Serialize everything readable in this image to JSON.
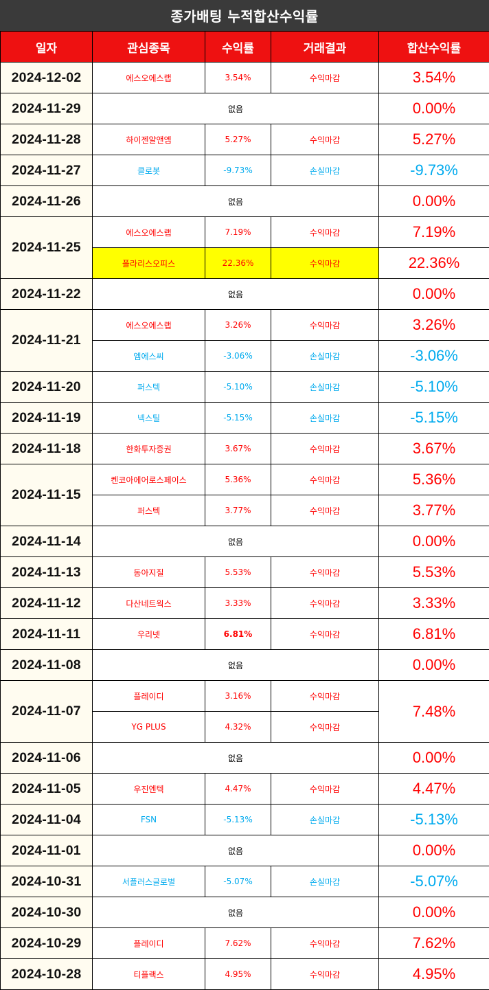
{
  "title": "종가배팅 누적합산수익률",
  "headers": [
    "일자",
    "관심종목",
    "수익률",
    "거래결과",
    "합산수익률"
  ],
  "colors": {
    "header_bg": "#ee1111",
    "title_bg": "#3a3a3a",
    "gain": "#ff0000",
    "loss": "#00aaee",
    "highlight": "#ffff00",
    "date_bg": "#fffcf0"
  },
  "days": [
    {
      "date": "2024-12-02",
      "sum": "3.54%",
      "sum_type": "gain",
      "trades": [
        {
          "name": "에스오에스랩",
          "rate": "3.54%",
          "result": "수익마감",
          "type": "gain"
        }
      ]
    },
    {
      "date": "2024-11-29",
      "sum": "0.00%",
      "sum_type": "zero",
      "none": "없음",
      "trades": []
    },
    {
      "date": "2024-11-28",
      "sum": "5.27%",
      "sum_type": "gain",
      "trades": [
        {
          "name": "하이젠알앤엠",
          "rate": "5.27%",
          "result": "수익마감",
          "type": "gain"
        }
      ]
    },
    {
      "date": "2024-11-27",
      "sum": "-9.73%",
      "sum_type": "loss",
      "trades": [
        {
          "name": "클로봇",
          "rate": "-9.73%",
          "result": "손실마감",
          "type": "loss"
        }
      ]
    },
    {
      "date": "2024-11-26",
      "sum": "0.00%",
      "sum_type": "zero",
      "none": "없음",
      "trades": []
    },
    {
      "date": "2024-11-25",
      "per_row_sum": true,
      "trades": [
        {
          "name": "에스오에스랩",
          "rate": "7.19%",
          "result": "수익마감",
          "type": "gain",
          "sum": "7.19%"
        },
        {
          "name": "폴라리스오피스",
          "rate": "22.36%",
          "result": "수익마감",
          "type": "gain",
          "sum": "22.36%",
          "highlight": true
        }
      ]
    },
    {
      "date": "2024-11-22",
      "sum": "0.00%",
      "sum_type": "zero",
      "none": "없음",
      "trades": []
    },
    {
      "date": "2024-11-21",
      "per_row_sum": true,
      "trades": [
        {
          "name": "에스오에스랩",
          "rate": "3.26%",
          "result": "수익마감",
          "type": "gain",
          "sum": "3.26%"
        },
        {
          "name": "엠에스씨",
          "rate": "-3.06%",
          "result": "손실마감",
          "type": "loss",
          "sum": "-3.06%"
        }
      ]
    },
    {
      "date": "2024-11-20",
      "sum": "-5.10%",
      "sum_type": "loss",
      "trades": [
        {
          "name": "퍼스텍",
          "rate": "-5.10%",
          "result": "손실마감",
          "type": "loss"
        }
      ]
    },
    {
      "date": "2024-11-19",
      "sum": "-5.15%",
      "sum_type": "loss",
      "trades": [
        {
          "name": "넥스틸",
          "rate": "-5.15%",
          "result": "손실마감",
          "type": "loss"
        }
      ]
    },
    {
      "date": "2024-11-18",
      "sum": "3.67%",
      "sum_type": "gain",
      "trades": [
        {
          "name": "한화투자증권",
          "rate": "3.67%",
          "result": "수익마감",
          "type": "gain"
        }
      ]
    },
    {
      "date": "2024-11-15",
      "per_row_sum": true,
      "trades": [
        {
          "name": "켄코아에어로스페이스",
          "rate": "5.36%",
          "result": "수익마감",
          "type": "gain",
          "sum": "5.36%"
        },
        {
          "name": "퍼스텍",
          "rate": "3.77%",
          "result": "수익마감",
          "type": "gain",
          "sum": "3.77%"
        }
      ]
    },
    {
      "date": "2024-11-14",
      "sum": "0.00%",
      "sum_type": "zero",
      "none": "없음",
      "trades": []
    },
    {
      "date": "2024-11-13",
      "sum": "5.53%",
      "sum_type": "gain",
      "trades": [
        {
          "name": "동아지질",
          "rate": "5.53%",
          "result": "수익마감",
          "type": "gain"
        }
      ]
    },
    {
      "date": "2024-11-12",
      "sum": "3.33%",
      "sum_type": "gain",
      "trades": [
        {
          "name": "다산네트웍스",
          "rate": "3.33%",
          "result": "수익마감",
          "type": "gain"
        }
      ]
    },
    {
      "date": "2024-11-11",
      "sum": "6.81%",
      "sum_type": "gain",
      "trades": [
        {
          "name": "우리넷",
          "rate": "6.81%",
          "result": "수익마감",
          "type": "gain",
          "bold_rate": true
        }
      ]
    },
    {
      "date": "2024-11-08",
      "sum": "0.00%",
      "sum_type": "zero",
      "none": "없음",
      "trades": []
    },
    {
      "date": "2024-11-07",
      "sum": "7.48%",
      "sum_type": "gain",
      "trades": [
        {
          "name": "플레이디",
          "rate": "3.16%",
          "result": "수익마감",
          "type": "gain"
        },
        {
          "name": "YG PLUS",
          "rate": "4.32%",
          "result": "수익마감",
          "type": "gain"
        }
      ]
    },
    {
      "date": "2024-11-06",
      "sum": "0.00%",
      "sum_type": "zero",
      "none": "없음",
      "trades": []
    },
    {
      "date": "2024-11-05",
      "sum": "4.47%",
      "sum_type": "gain",
      "trades": [
        {
          "name": "우진엔텍",
          "rate": "4.47%",
          "result": "수익마감",
          "type": "gain"
        }
      ]
    },
    {
      "date": "2024-11-04",
      "sum": "-5.13%",
      "sum_type": "loss",
      "trades": [
        {
          "name": "FSN",
          "rate": "-5.13%",
          "result": "손실마감",
          "type": "loss"
        }
      ]
    },
    {
      "date": "2024-11-01",
      "sum": "0.00%",
      "sum_type": "zero",
      "none": "없음",
      "trades": []
    },
    {
      "date": "2024-10-31",
      "sum": "-5.07%",
      "sum_type": "loss",
      "trades": [
        {
          "name": "서플러스글로벌",
          "rate": "-5.07%",
          "result": "손실마감",
          "type": "loss"
        }
      ]
    },
    {
      "date": "2024-10-30",
      "sum": "0.00%",
      "sum_type": "zero",
      "none": "없음",
      "trades": []
    },
    {
      "date": "2024-10-29",
      "sum": "7.62%",
      "sum_type": "gain",
      "trades": [
        {
          "name": "플레이디",
          "rate": "7.62%",
          "result": "수익마감",
          "type": "gain"
        }
      ]
    },
    {
      "date": "2024-10-28",
      "sum": "4.95%",
      "sum_type": "gain",
      "trades": [
        {
          "name": "티플랙스",
          "rate": "4.95%",
          "result": "수익마감",
          "type": "gain"
        }
      ]
    }
  ]
}
